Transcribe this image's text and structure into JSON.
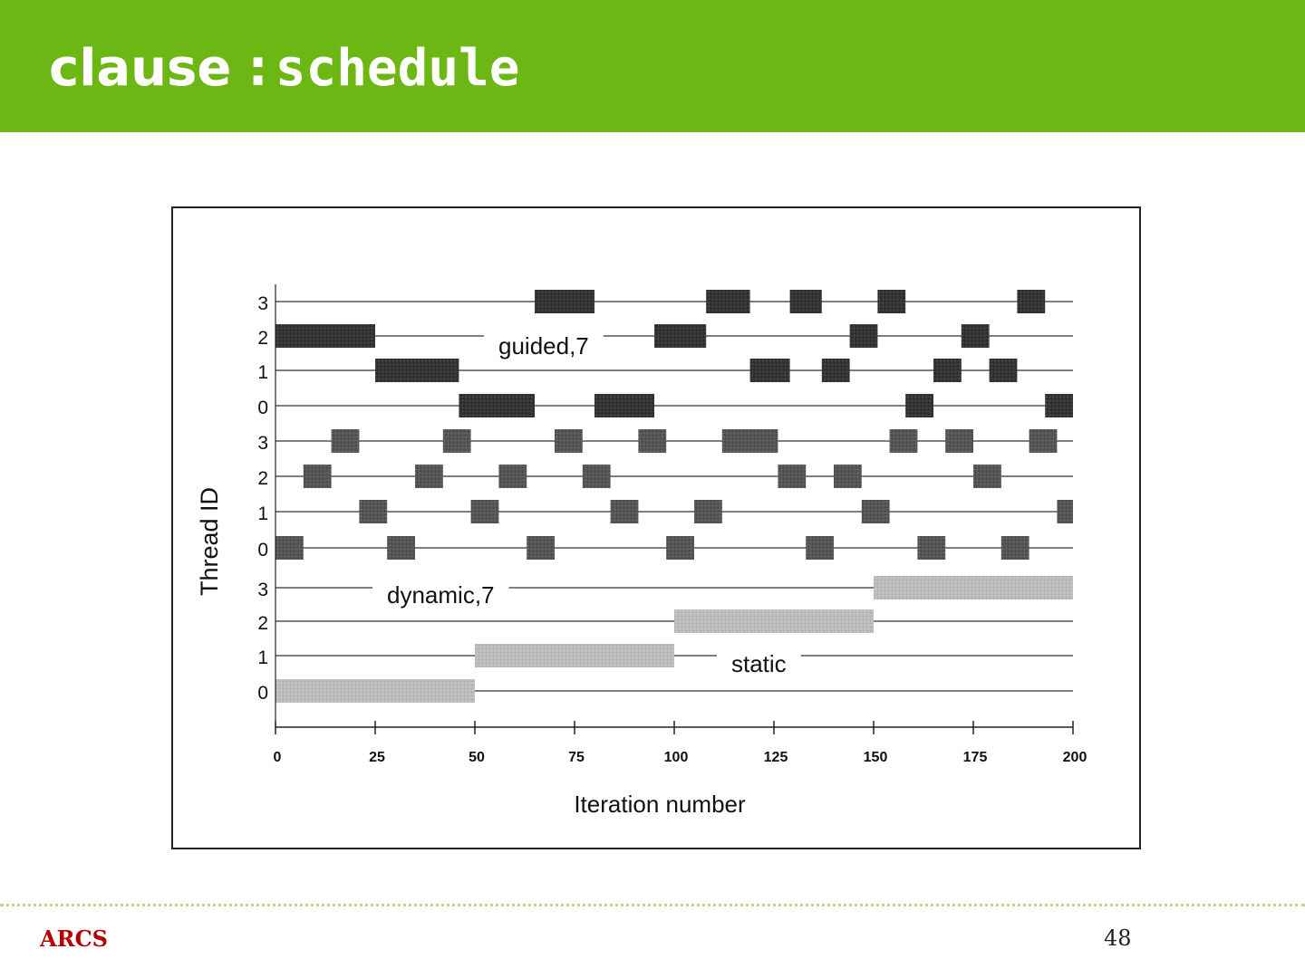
{
  "slide": {
    "title_word": "clause",
    "title_separator": ":",
    "title_code": "schedule",
    "footer_logo": "ARCS",
    "page_number": "48"
  },
  "colors": {
    "header": "#6db714",
    "guided_block": "#333333",
    "dynamic_block": "#555555",
    "static_block": "#bdbdbd",
    "logo": "#b30000"
  },
  "chart_data": {
    "type": "gantt",
    "title": "",
    "xlabel": "Iteration number",
    "ylabel": "Thread ID",
    "xlim": [
      0,
      200
    ],
    "x_ticks": [
      0,
      25,
      50,
      75,
      100,
      125,
      150,
      175,
      200
    ],
    "grid": false,
    "groups": [
      {
        "label": "guided,7",
        "threads": [
          {
            "id": "3",
            "segments": [
              [
                65,
                80
              ],
              [
                108,
                119
              ],
              [
                129,
                137
              ],
              [
                151,
                158
              ],
              [
                186,
                193
              ]
            ]
          },
          {
            "id": "2",
            "segments": [
              [
                0,
                25
              ],
              [
                95,
                108
              ],
              [
                144,
                151
              ],
              [
                172,
                179
              ]
            ]
          },
          {
            "id": "1",
            "segments": [
              [
                25,
                46
              ],
              [
                119,
                129
              ],
              [
                137,
                144
              ],
              [
                165,
                172
              ],
              [
                179,
                186
              ]
            ]
          },
          {
            "id": "0",
            "segments": [
              [
                46,
                65
              ],
              [
                80,
                95
              ],
              [
                158,
                165
              ],
              [
                193,
                200
              ]
            ]
          }
        ]
      },
      {
        "label": "dynamic,7",
        "threads": [
          {
            "id": "3",
            "segments": [
              [
                14,
                21
              ],
              [
                42,
                49
              ],
              [
                70,
                77
              ],
              [
                91,
                98
              ],
              [
                112,
                126
              ],
              [
                154,
                161
              ],
              [
                168,
                175
              ],
              [
                189,
                196
              ]
            ]
          },
          {
            "id": "2",
            "segments": [
              [
                7,
                14
              ],
              [
                35,
                42
              ],
              [
                56,
                63
              ],
              [
                77,
                84
              ],
              [
                126,
                133
              ],
              [
                140,
                147
              ],
              [
                175,
                182
              ]
            ]
          },
          {
            "id": "1",
            "segments": [
              [
                21,
                28
              ],
              [
                49,
                56
              ],
              [
                84,
                91
              ],
              [
                105,
                112
              ],
              [
                147,
                154
              ],
              [
                196,
                200
              ]
            ]
          },
          {
            "id": "0",
            "segments": [
              [
                0,
                7
              ],
              [
                28,
                35
              ],
              [
                63,
                70
              ],
              [
                98,
                105
              ],
              [
                133,
                140
              ],
              [
                161,
                168
              ],
              [
                182,
                189
              ]
            ]
          }
        ]
      },
      {
        "label": "static",
        "threads": [
          {
            "id": "3",
            "segments": [
              [
                150,
                200
              ]
            ]
          },
          {
            "id": "2",
            "segments": [
              [
                100,
                150
              ]
            ]
          },
          {
            "id": "1",
            "segments": [
              [
                50,
                100
              ]
            ]
          },
          {
            "id": "0",
            "segments": [
              [
                0,
                50
              ]
            ]
          }
        ]
      }
    ]
  }
}
